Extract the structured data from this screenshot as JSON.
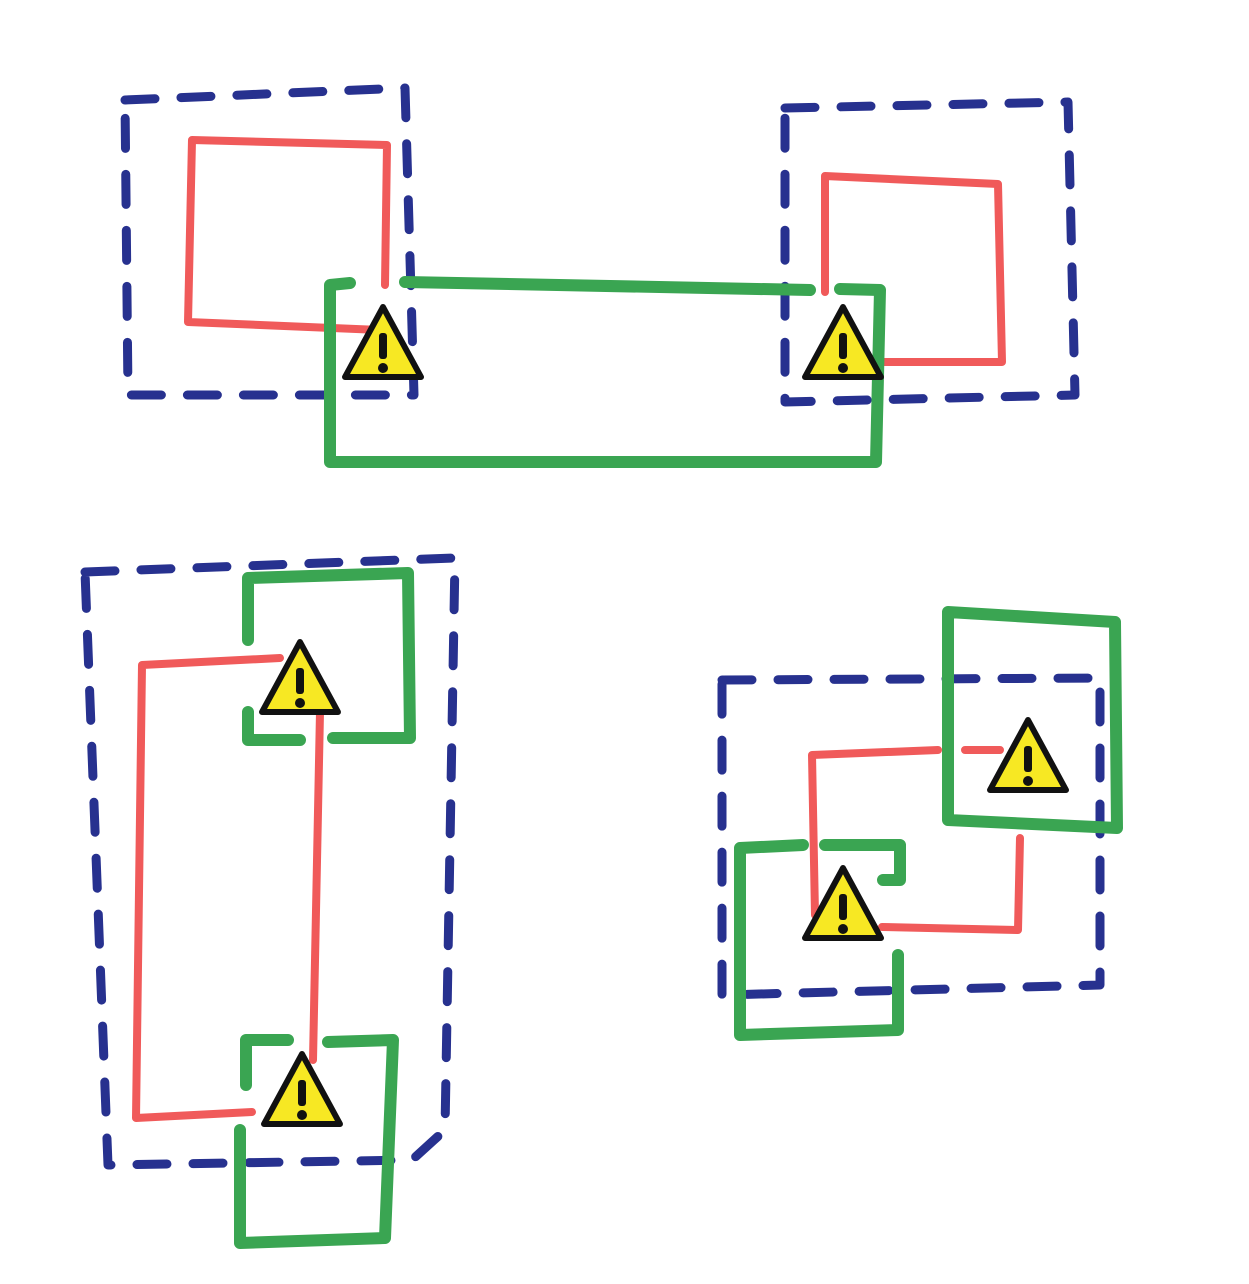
{
  "diagram": {
    "description_free": true,
    "colors": {
      "background": "#ffffff",
      "boundary_dashed": "#27318f",
      "red_box": "#f05a5a",
      "green_box": "#3aa552",
      "warning_fill": "#f7e823",
      "warning_outline": "#111111"
    },
    "icons": [
      "warning-icon"
    ]
  }
}
